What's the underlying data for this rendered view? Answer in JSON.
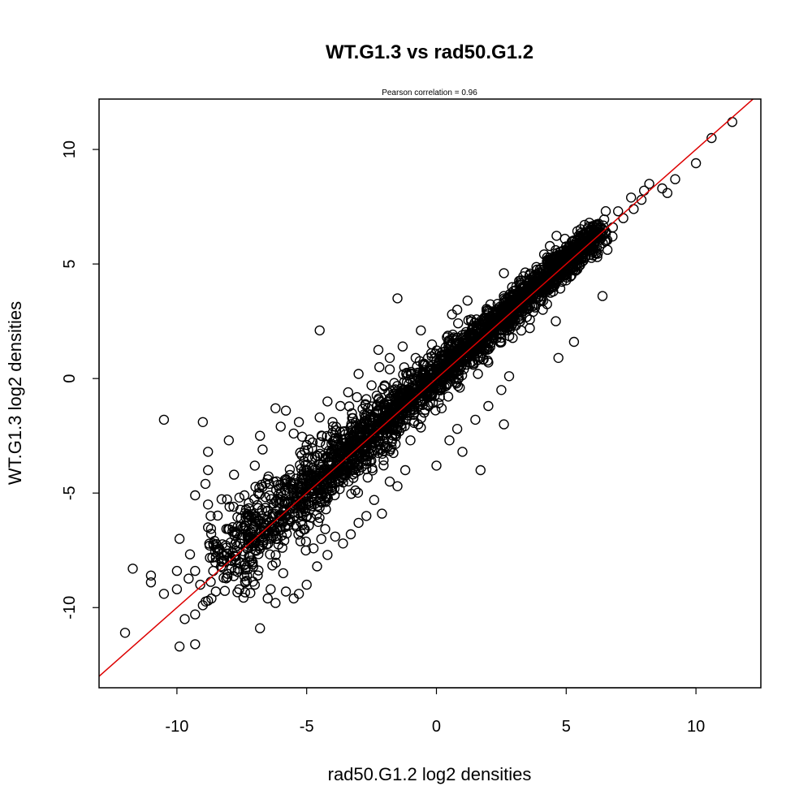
{
  "chart_data": {
    "type": "scatter",
    "title": "WT.G1.3 vs rad50.G1.2",
    "subtitle": "Pearson correlation =  0.96",
    "xlabel": "rad50.G1.2 log2 densities",
    "ylabel": "WT.G1.3 log2 densities",
    "xlim": [
      -13,
      12.5
    ],
    "ylim": [
      -13.5,
      12.2
    ],
    "x_ticks": [
      -10,
      -5,
      0,
      5,
      10
    ],
    "y_ticks": [
      -10,
      -5,
      0,
      5,
      10
    ],
    "x_tick_labels": [
      "-10",
      "-5",
      "0",
      "5",
      "10"
    ],
    "y_tick_labels": [
      "-10",
      "-5",
      "0",
      "5",
      "10"
    ],
    "grid": false,
    "marker": "open-circle",
    "marker_color": "#000000",
    "fit_line": {
      "slope": 1,
      "intercept": 0,
      "color": "#dd0000"
    },
    "correlation": 0.96,
    "series": [
      {
        "values": [
          [
            11.4,
            11.2
          ],
          [
            10.6,
            10.5
          ],
          [
            10.0,
            9.4
          ],
          [
            9.2,
            8.7
          ],
          [
            8.9,
            8.1
          ],
          [
            8.7,
            8.3
          ],
          [
            8.2,
            8.5
          ],
          [
            8.0,
            8.2
          ],
          [
            7.9,
            7.8
          ],
          [
            7.6,
            7.4
          ],
          [
            7.5,
            7.9
          ],
          [
            7.2,
            7.0
          ],
          [
            7.0,
            7.3
          ],
          [
            6.8,
            6.6
          ],
          [
            6.5,
            6.0
          ],
          [
            6.4,
            3.6
          ],
          [
            6.2,
            5.3
          ],
          [
            6.0,
            5.5
          ],
          [
            5.8,
            5.9
          ],
          [
            5.5,
            5.2
          ],
          [
            5.2,
            4.5
          ],
          [
            5.0,
            5.6
          ],
          [
            4.8,
            4.9
          ],
          [
            4.5,
            3.8
          ],
          [
            4.2,
            4.6
          ],
          [
            4.0,
            3.4
          ],
          [
            3.8,
            3.1
          ],
          [
            3.5,
            3.6
          ],
          [
            3.2,
            2.6
          ],
          [
            3.0,
            3.0
          ],
          [
            2.6,
            4.6
          ],
          [
            2.5,
            2.1
          ],
          [
            5.3,
            1.6
          ],
          [
            4.7,
            0.9
          ],
          [
            4.6,
            2.5
          ],
          [
            4.1,
            3.0
          ],
          [
            3.6,
            2.2
          ],
          [
            2.2,
            1.9
          ],
          [
            2.0,
            0.7
          ],
          [
            1.6,
            0.2
          ],
          [
            1.2,
            3.4
          ],
          [
            0.8,
            3.0
          ],
          [
            0.6,
            2.8
          ],
          [
            0.4,
            1.8
          ],
          [
            0.2,
            0.3
          ],
          [
            -0.2,
            1.1
          ],
          [
            -0.5,
            0.6
          ],
          [
            -0.8,
            0.9
          ],
          [
            -1.5,
            3.5
          ],
          [
            -4.5,
            2.1
          ],
          [
            -1.1,
            -0.6
          ],
          [
            -1.5,
            -1.8
          ],
          [
            -1.8,
            0.4
          ],
          [
            -2.0,
            -0.3
          ],
          [
            -2.4,
            -1.7
          ],
          [
            -2.7,
            -0.9
          ],
          [
            0.0,
            -3.8
          ],
          [
            0.2,
            -1.3
          ],
          [
            0.5,
            -2.7
          ],
          [
            0.8,
            -2.2
          ],
          [
            1.0,
            -3.2
          ],
          [
            1.5,
            -1.8
          ],
          [
            1.7,
            -4.0
          ],
          [
            2.6,
            -2.0
          ],
          [
            2.5,
            -0.5
          ],
          [
            2.0,
            -1.2
          ],
          [
            2.8,
            0.1
          ],
          [
            1.3,
            0.7
          ],
          [
            0.9,
            -0.4
          ],
          [
            -0.3,
            -1.2
          ],
          [
            -0.7,
            -2.0
          ],
          [
            -1.0,
            -2.7
          ],
          [
            -1.2,
            -4.0
          ],
          [
            -1.5,
            -4.7
          ],
          [
            -1.8,
            -4.5
          ],
          [
            -2.1,
            -5.9
          ],
          [
            -2.4,
            -5.3
          ],
          [
            -2.7,
            -6.0
          ],
          [
            -3.0,
            -6.3
          ],
          [
            -3.3,
            -6.8
          ],
          [
            -3.6,
            -7.2
          ],
          [
            -3.9,
            -6.9
          ],
          [
            -4.2,
            -7.7
          ],
          [
            -4.6,
            -8.2
          ],
          [
            -5.0,
            -9.0
          ],
          [
            -5.3,
            -9.4
          ],
          [
            -5.5,
            -9.6
          ],
          [
            -5.8,
            -9.3
          ],
          [
            -6.2,
            -9.8
          ],
          [
            -6.5,
            -9.6
          ],
          [
            -6.8,
            -10.9
          ],
          [
            -7.0,
            -9.0
          ],
          [
            -7.3,
            -8.6
          ],
          [
            -7.6,
            -9.2
          ],
          [
            -7.9,
            -8.3
          ],
          [
            -8.2,
            -8.7
          ],
          [
            -8.5,
            -9.3
          ],
          [
            -8.8,
            -9.7
          ],
          [
            -9.0,
            -9.9
          ],
          [
            -9.3,
            -10.3
          ],
          [
            -9.7,
            -10.5
          ],
          [
            -9.9,
            -11.7
          ],
          [
            -9.3,
            -11.6
          ],
          [
            -12.0,
            -11.1
          ],
          [
            -11.7,
            -8.3
          ],
          [
            -11.0,
            -8.6
          ],
          [
            -11.0,
            -8.9
          ],
          [
            -10.5,
            -9.4
          ],
          [
            -10.0,
            -9.2
          ],
          [
            -9.3,
            -8.4
          ],
          [
            -9.1,
            -9.0
          ],
          [
            -8.6,
            -8.4
          ],
          [
            -10.0,
            -8.4
          ],
          [
            -9.9,
            -7.0
          ],
          [
            -10.5,
            -1.8
          ],
          [
            -9.0,
            -1.9
          ],
          [
            -8.0,
            -2.7
          ],
          [
            -8.8,
            -3.2
          ],
          [
            -8.8,
            -4.0
          ],
          [
            -8.9,
            -4.6
          ],
          [
            -9.3,
            -5.1
          ],
          [
            -8.8,
            -5.5
          ],
          [
            -8.7,
            -6.0
          ],
          [
            -8.8,
            -6.5
          ],
          [
            -8.6,
            -7.2
          ],
          [
            -8.5,
            -7.8
          ],
          [
            -8.3,
            -8.2
          ],
          [
            -7.8,
            -4.2
          ],
          [
            -7.4,
            -5.1
          ],
          [
            -7.2,
            -6.0
          ],
          [
            -7.0,
            -3.8
          ],
          [
            -6.8,
            -2.5
          ],
          [
            -6.7,
            -3.1
          ],
          [
            -6.5,
            -4.4
          ],
          [
            -6.2,
            -1.3
          ],
          [
            -6.0,
            -2.1
          ],
          [
            -5.8,
            -1.4
          ],
          [
            -5.5,
            -2.4
          ],
          [
            -5.3,
            -1.9
          ],
          [
            -5.0,
            -2.9
          ],
          [
            -4.8,
            -3.5
          ],
          [
            -4.5,
            -1.7
          ],
          [
            -4.2,
            -1.0
          ],
          [
            -4.0,
            -1.9
          ],
          [
            -3.7,
            -1.2
          ],
          [
            -3.4,
            -0.6
          ],
          [
            -3.0,
            0.2
          ],
          [
            -2.5,
            -0.3
          ],
          [
            -2.2,
            0.5
          ],
          [
            -1.8,
            0.9
          ],
          [
            -1.3,
            1.4
          ],
          [
            -0.6,
            2.1
          ]
        ]
      }
    ]
  }
}
